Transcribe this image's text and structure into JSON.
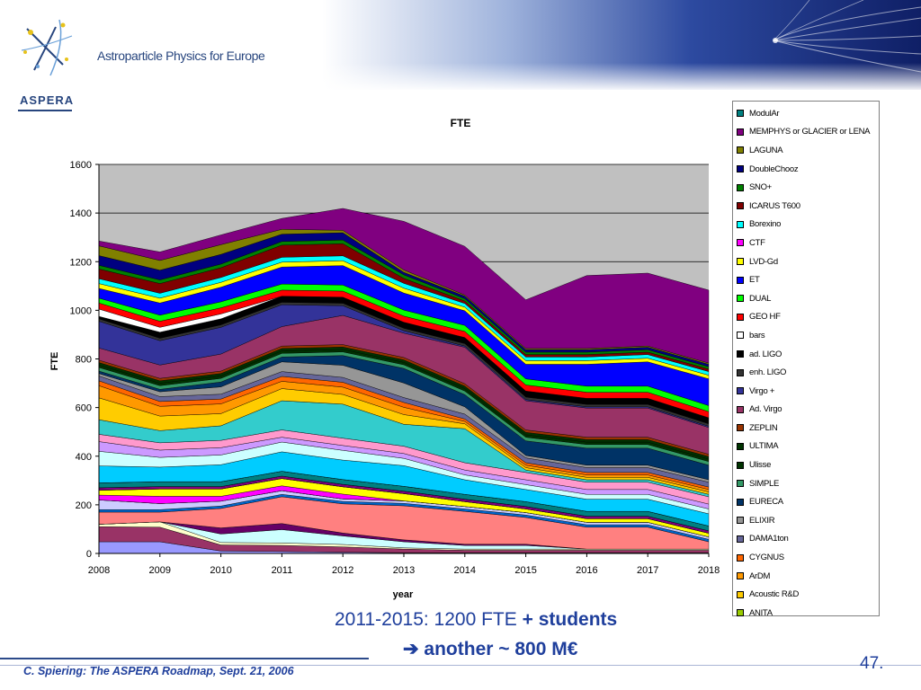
{
  "header": {
    "logo_text": "ASPERA",
    "org_text": "Astroparticle Physics for Europe"
  },
  "colors": {
    "header_band": "#1b2f7a",
    "plot_bg": "#c0c0c0",
    "text_blue": "#1f3f9c"
  },
  "chart_data": {
    "type": "area",
    "stacked": true,
    "title": "FTE",
    "xlabel": "year",
    "ylabel": "FTE",
    "x": [
      2008,
      2009,
      2010,
      2011,
      2012,
      2013,
      2014,
      2015,
      2016,
      2017,
      2018
    ],
    "ylim": [
      0,
      1600
    ],
    "yticks": [
      0,
      200,
      400,
      600,
      800,
      1000,
      1200,
      1400,
      1600
    ],
    "grid": true,
    "legend_position": "right",
    "series": [
      {
        "name": "ANITA",
        "color": "#99cc00",
        "values": [
          0,
          0,
          0,
          0,
          0,
          0,
          0,
          0,
          0,
          0,
          0
        ]
      },
      {
        "name": "Acoustic R&D",
        "color": "#ffcc00",
        "values": [
          0,
          0,
          0,
          0,
          0,
          0,
          0,
          0,
          0,
          0,
          0
        ]
      },
      {
        "name": "ArDM",
        "color": "#ff9900",
        "values": [
          0,
          0,
          0,
          0,
          0,
          0,
          0,
          0,
          0,
          0,
          0
        ]
      },
      {
        "name": "CYGNUS",
        "color": "#ff6600",
        "values": [
          0,
          0,
          0,
          0,
          0,
          0,
          0,
          0,
          0,
          0,
          0
        ]
      },
      {
        "name": "DAMA1ton",
        "color": "#9999ff",
        "values": [
          48,
          48,
          10,
          8,
          5,
          3,
          3,
          3,
          3,
          3,
          3
        ]
      },
      {
        "name": "ELIXIR",
        "color": "#993366",
        "values": [
          62,
          60,
          25,
          25,
          22,
          15,
          10,
          10,
          10,
          10,
          10
        ]
      },
      {
        "name": "EURECA",
        "color": "#ffffcc",
        "values": [
          10,
          22,
          10,
          10,
          10,
          5,
          5,
          5,
          5,
          5,
          5
        ]
      },
      {
        "name": "SIMPLE",
        "color": "#ccffff",
        "values": [
          0,
          0,
          35,
          55,
          35,
          25,
          15,
          15,
          0,
          0,
          0
        ]
      },
      {
        "name": "Ulisse",
        "color": "#660066",
        "values": [
          0,
          0,
          25,
          25,
          12,
          8,
          5,
          5,
          0,
          0,
          0
        ]
      },
      {
        "name": "ULTIMA",
        "color": "#ff8080",
        "values": [
          50,
          40,
          80,
          110,
          120,
          140,
          135,
          110,
          90,
          90,
          30
        ]
      },
      {
        "name": "ZEPLIN",
        "color": "#0066cc",
        "values": [
          10,
          10,
          10,
          10,
          10,
          10,
          10,
          10,
          10,
          10,
          10
        ]
      },
      {
        "name": "Ad. Virgo",
        "color": "#ccccff",
        "values": [
          40,
          25,
          20,
          15,
          10,
          10,
          10,
          10,
          10,
          10,
          10
        ]
      },
      {
        "name": "Virgo +",
        "color": "#000080",
        "values": [
          0,
          0,
          0,
          0,
          0,
          0,
          0,
          0,
          0,
          0,
          0
        ]
      },
      {
        "name": "enh. LIGO",
        "color": "#ff00ff",
        "values": [
          20,
          30,
          20,
          20,
          20,
          0,
          0,
          0,
          0,
          0,
          0
        ]
      },
      {
        "name": "ad. LIGO",
        "color": "#ffff00",
        "values": [
          20,
          30,
          30,
          30,
          30,
          30,
          20,
          15,
          15,
          15,
          15
        ]
      },
      {
        "name": "bars",
        "color": "#00ffff",
        "values": [
          0,
          0,
          0,
          0,
          0,
          0,
          0,
          0,
          0,
          0,
          0
        ]
      },
      {
        "name": "GEO HF",
        "color": "#800080",
        "values": [
          10,
          10,
          10,
          10,
          10,
          10,
          10,
          10,
          10,
          10,
          10
        ]
      },
      {
        "name": "DUAL",
        "color": "#800000",
        "values": [
          0,
          0,
          0,
          0,
          0,
          0,
          0,
          0,
          0,
          0,
          0
        ]
      },
      {
        "name": "ET",
        "color": "#008080",
        "values": [
          20,
          20,
          20,
          20,
          20,
          20,
          20,
          20,
          20,
          20,
          20
        ]
      },
      {
        "name": "LVD-Gd",
        "color": "#0000ff",
        "values": [
          0,
          0,
          0,
          0,
          0,
          0,
          0,
          0,
          0,
          0,
          0
        ]
      },
      {
        "name": "CTF",
        "color": "#00ccff",
        "values": [
          70,
          60,
          70,
          80,
          80,
          85,
          60,
          50,
          50,
          50,
          50
        ]
      },
      {
        "name": "Borexino",
        "color": "#ccffff",
        "values": [
          60,
          40,
          40,
          40,
          40,
          30,
          20,
          20,
          20,
          20,
          20
        ]
      },
      {
        "name": "ICARUS T600",
        "color": "#cc99ff",
        "values": [
          40,
          30,
          30,
          20,
          20,
          20,
          20,
          20,
          20,
          20,
          20
        ]
      },
      {
        "name": "SNO+",
        "color": "#ff99cc",
        "values": [
          30,
          30,
          30,
          30,
          30,
          30,
          30,
          30,
          30,
          30,
          30
        ]
      },
      {
        "name": "DoubleChooz",
        "color": "#33cccc",
        "values": [
          60,
          50,
          60,
          120,
          140,
          90,
          140,
          10,
          10,
          10,
          10
        ]
      },
      {
        "name": "LAGUNA",
        "color": "#ffcc00",
        "values": [
          90,
          60,
          50,
          50,
          40,
          40,
          20,
          10,
          10,
          10,
          10
        ]
      },
      {
        "name": "MEMPHYS or GLACIER or LENA",
        "color": "#ff9900",
        "values": [
          50,
          40,
          40,
          30,
          30,
          30,
          10,
          10,
          10,
          10,
          10
        ]
      },
      {
        "name": "ModulAr",
        "color": "#ff6600",
        "values": [
          20,
          20,
          20,
          20,
          20,
          20,
          10,
          10,
          10,
          10,
          10
        ]
      }
    ],
    "legend": [
      {
        "name": "ModulAr",
        "color": "#008080"
      },
      {
        "name": "MEMPHYS or GLACIER or LENA",
        "color": "#800080"
      },
      {
        "name": "LAGUNA",
        "color": "#808000"
      },
      {
        "name": "DoubleChooz",
        "color": "#000080"
      },
      {
        "name": "SNO+",
        "color": "#008000"
      },
      {
        "name": "ICARUS T600",
        "color": "#800000"
      },
      {
        "name": "Borexino",
        "color": "#00ffff"
      },
      {
        "name": "CTF",
        "color": "#ff00ff"
      },
      {
        "name": "LVD-Gd",
        "color": "#ffff00"
      },
      {
        "name": "ET",
        "color": "#0000ff"
      },
      {
        "name": "DUAL",
        "color": "#00ff00"
      },
      {
        "name": "GEO HF",
        "color": "#ff0000"
      },
      {
        "name": "bars",
        "color": "#ffffff"
      },
      {
        "name": "ad. LIGO",
        "color": "#000000"
      },
      {
        "name": "enh. LIGO",
        "color": "#333333"
      },
      {
        "name": "Virgo +",
        "color": "#333399"
      },
      {
        "name": "Ad. Virgo",
        "color": "#993366"
      },
      {
        "name": "ZEPLIN",
        "color": "#993300"
      },
      {
        "name": "ULTIMA",
        "color": "#003300"
      },
      {
        "name": "Ulisse",
        "color": "#003300"
      },
      {
        "name": "SIMPLE",
        "color": "#339966"
      },
      {
        "name": "EURECA",
        "color": "#003366"
      },
      {
        "name": "ELIXIR",
        "color": "#969696"
      },
      {
        "name": "DAMA1ton",
        "color": "#666699"
      },
      {
        "name": "CYGNUS",
        "color": "#ff6600"
      },
      {
        "name": "ArDM",
        "color": "#ff9900"
      },
      {
        "name": "Acoustic R&D",
        "color": "#ffcc00"
      },
      {
        "name": "ANITA",
        "color": "#99cc00"
      }
    ],
    "totals_upper": [
      1380,
      1300,
      1250,
      1275,
      1345,
      1355,
      1300,
      1095,
      1135,
      1090,
      990
    ],
    "upper_layers": [
      {
        "name": "MEMPHYS or GLACIER or LENA",
        "color": "#800080",
        "values": [
          20,
          35,
          40,
          45,
          90,
          200,
          200,
          200,
          300,
          300,
          300
        ]
      },
      {
        "name": "LAGUNA",
        "color": "#808000",
        "values": [
          40,
          40,
          40,
          20,
          10,
          10,
          5,
          5,
          5,
          5,
          5
        ]
      },
      {
        "name": "DoubleChooz",
        "color": "#000080",
        "values": [
          40,
          40,
          40,
          30,
          30,
          10,
          10,
          10,
          10,
          10,
          10
        ]
      },
      {
        "name": "SNO+",
        "color": "#008000",
        "values": [
          15,
          15,
          15,
          15,
          15,
          15,
          10,
          10,
          10,
          10,
          10
        ]
      },
      {
        "name": "ICARUS T600",
        "color": "#800000",
        "values": [
          40,
          40,
          40,
          50,
          50,
          20,
          10,
          10,
          10,
          10,
          10
        ]
      },
      {
        "name": "Borexino",
        "color": "#00ffff",
        "values": [
          20,
          20,
          20,
          20,
          20,
          20,
          15,
          15,
          15,
          15,
          15
        ]
      },
      {
        "name": "LVD-Gd",
        "color": "#ffff00",
        "values": [
          20,
          20,
          20,
          20,
          20,
          20,
          15,
          15,
          15,
          15,
          15
        ]
      },
      {
        "name": "ET",
        "color": "#0000ff",
        "values": [
          40,
          50,
          60,
          70,
          80,
          70,
          60,
          60,
          90,
          100,
          110
        ]
      },
      {
        "name": "DUAL",
        "color": "#00ff00",
        "values": [
          20,
          25,
          25,
          25,
          25,
          25,
          25,
          25,
          25,
          25,
          25
        ]
      },
      {
        "name": "GEO HF",
        "color": "#ff0000",
        "values": [
          25,
          25,
          25,
          25,
          25,
          25,
          25,
          25,
          25,
          25,
          25
        ]
      },
      {
        "name": "bars",
        "color": "#ffffff",
        "values": [
          30,
          20,
          20,
          0,
          0,
          0,
          0,
          0,
          0,
          0,
          0
        ]
      },
      {
        "name": "ad. LIGO",
        "color": "#000000",
        "values": [
          10,
          25,
          25,
          25,
          25,
          25,
          25,
          25,
          25,
          25,
          25
        ]
      },
      {
        "name": "enh. LIGO",
        "color": "#333333",
        "values": [
          10,
          10,
          10,
          10,
          10,
          10,
          10,
          10,
          10,
          10,
          10
        ]
      },
      {
        "name": "Virgo +",
        "color": "#333399",
        "values": [
          110,
          100,
          110,
          90,
          40,
          10,
          5,
          5,
          5,
          5,
          5
        ]
      },
      {
        "name": "Ad. Virgo",
        "color": "#993366",
        "values": [
          50,
          55,
          70,
          80,
          120,
          100,
          150,
          120,
          120,
          120,
          110
        ]
      },
      {
        "name": "ZEPLIN",
        "color": "#993300",
        "values": [
          10,
          10,
          10,
          10,
          10,
          10,
          10,
          10,
          10,
          10,
          10
        ]
      },
      {
        "name": "ULTIMA",
        "color": "#003300",
        "values": [
          10,
          10,
          10,
          10,
          10,
          10,
          10,
          10,
          10,
          10,
          10
        ]
      },
      {
        "name": "Ulisse",
        "color": "#003300",
        "values": [
          10,
          10,
          10,
          10,
          10,
          10,
          10,
          10,
          10,
          10,
          10
        ]
      },
      {
        "name": "SIMPLE",
        "color": "#339966",
        "values": [
          15,
          15,
          15,
          15,
          15,
          15,
          15,
          15,
          15,
          15,
          15
        ]
      },
      {
        "name": "EURECA",
        "color": "#003366",
        "values": [
          10,
          10,
          20,
          20,
          40,
          60,
          50,
          60,
          70,
          70,
          60
        ]
      },
      {
        "name": "ELIXIR",
        "color": "#969696",
        "values": [
          10,
          20,
          30,
          40,
          50,
          60,
          30,
          10,
          10,
          10,
          10
        ]
      },
      {
        "name": "DAMA1ton",
        "color": "#666699",
        "values": [
          20,
          20,
          20,
          20,
          20,
          20,
          20,
          20,
          20,
          20,
          20
        ]
      }
    ]
  },
  "notes": {
    "line1_plain": "2011-2015: 1200 FTE ",
    "line1_bold": "+ students",
    "line2": "➔ another ~ 800 M€"
  },
  "footer": {
    "author": "C. Spiering: The ASPERA Roadmap, Sept. 21, 2006",
    "page": "47."
  }
}
